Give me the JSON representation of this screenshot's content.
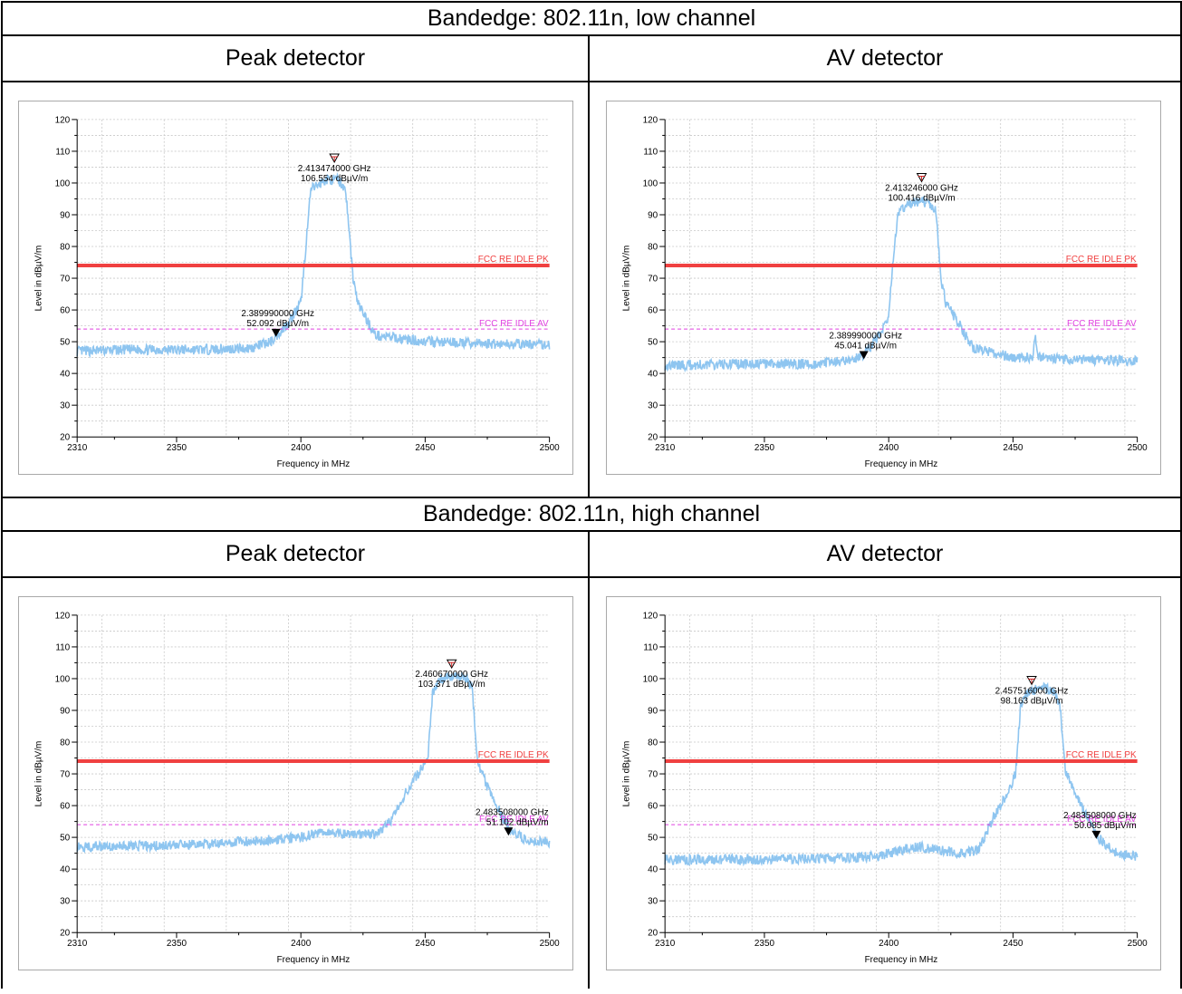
{
  "sections": [
    {
      "title": "Bandedge: 802.11n, low channel",
      "left_header": "Peak detector",
      "right_header": "AV detector"
    },
    {
      "title": "Bandedge: 802.11n, high channel",
      "left_header": "Peak detector",
      "right_header": "AV detector"
    }
  ],
  "colors": {
    "trace": "#8ec5f0",
    "pk_limit": "#f04040",
    "av_limit": "#e040e0",
    "grid": "#c8c8c8"
  },
  "chart_data": [
    {
      "type": "line",
      "xlabel": "Frequency in MHz",
      "ylabel": "Level in dBµV/m",
      "xlim": [
        2310,
        2500
      ],
      "ylim": [
        20,
        120
      ],
      "x_ticks": [
        2310,
        2350,
        2400,
        2450,
        2500
      ],
      "y_ticks": [
        20,
        30,
        40,
        50,
        60,
        70,
        80,
        90,
        100,
        110,
        120
      ],
      "grid": true,
      "limits": [
        {
          "name": "FCC RE IDLE PK",
          "value": 74,
          "style": "solid"
        },
        {
          "name": "FCC RE IDLE AV",
          "value": 54,
          "style": "dashed"
        }
      ],
      "series": [
        {
          "x": [
            2310,
            2330,
            2360,
            2380,
            2388,
            2395,
            2400,
            2402,
            2404,
            2410,
            2415,
            2418,
            2421,
            2423,
            2430,
            2450,
            2470,
            2500
          ],
          "y": [
            47,
            47.5,
            47.5,
            48,
            50,
            56,
            62,
            80,
            98,
            101,
            101,
            98,
            70,
            62,
            52,
            50,
            49.5,
            49
          ]
        }
      ],
      "markers": [
        {
          "type": "peak",
          "freq_label": "2.413474000 GHz",
          "level_label": "106.554 dBµV/m",
          "x": 2413.474,
          "y": 106.554
        },
        {
          "type": "edge",
          "freq_label": "2.389990000 GHz",
          "level_label": "52.092 dBµV/m",
          "x": 2389.99,
          "y": 52.092
        }
      ]
    },
    {
      "type": "line",
      "xlabel": "Frequency in MHz",
      "ylabel": "Level in dBµV/m",
      "xlim": [
        2310,
        2500
      ],
      "ylim": [
        20,
        120
      ],
      "x_ticks": [
        2310,
        2350,
        2400,
        2450,
        2500
      ],
      "y_ticks": [
        20,
        30,
        40,
        50,
        60,
        70,
        80,
        90,
        100,
        110,
        120
      ],
      "grid": true,
      "limits": [
        {
          "name": "FCC RE IDLE PK",
          "value": 74,
          "style": "solid"
        },
        {
          "name": "FCC RE IDLE AV",
          "value": 54,
          "style": "dashed"
        }
      ],
      "series": [
        {
          "x": [
            2310,
            2340,
            2370,
            2385,
            2390,
            2396,
            2400,
            2402,
            2404,
            2410,
            2415,
            2419,
            2421,
            2423,
            2428,
            2434,
            2450,
            2458,
            2459,
            2460,
            2470,
            2500
          ],
          "y": [
            42.5,
            43,
            43,
            44,
            46,
            52,
            58,
            78,
            91,
            94,
            94,
            91,
            70,
            62,
            56,
            48,
            45,
            45,
            52,
            45,
            44.5,
            44
          ]
        }
      ],
      "markers": [
        {
          "type": "peak",
          "freq_label": "2.413246000 GHz",
          "level_label": "100.416 dBµV/m",
          "x": 2413.246,
          "y": 100.416
        },
        {
          "type": "edge",
          "freq_label": "2.389990000 GHz",
          "level_label": "45.041 dBµV/m",
          "x": 2389.99,
          "y": 45.041
        }
      ]
    },
    {
      "type": "line",
      "xlabel": "Frequency in MHz",
      "ylabel": "Level in dBµV/m",
      "xlim": [
        2310,
        2500
      ],
      "ylim": [
        20,
        120
      ],
      "x_ticks": [
        2310,
        2350,
        2400,
        2450,
        2500
      ],
      "y_ticks": [
        20,
        30,
        40,
        50,
        60,
        70,
        80,
        90,
        100,
        110,
        120
      ],
      "grid": true,
      "limits": [
        {
          "name": "FCC RE IDLE PK",
          "value": 74,
          "style": "solid"
        },
        {
          "name": "FCC RE IDLE AV",
          "value": 54,
          "style": "dashed"
        }
      ],
      "series": [
        {
          "x": [
            2310,
            2350,
            2385,
            2400,
            2410,
            2420,
            2430,
            2436,
            2442,
            2448,
            2451,
            2453,
            2456,
            2462,
            2467,
            2469,
            2471,
            2476,
            2484,
            2492,
            2500
          ],
          "y": [
            47,
            47.5,
            49,
            50,
            52,
            51,
            51,
            55,
            64,
            71,
            74,
            96,
            100,
            101,
            100,
            96,
            74,
            64,
            52,
            49,
            48.5
          ]
        }
      ],
      "markers": [
        {
          "type": "peak",
          "freq_label": "2.460670000 GHz",
          "level_label": "103.371 dBµV/m",
          "x": 2460.67,
          "y": 103.371
        },
        {
          "type": "edge",
          "freq_label": "2.483508000 GHz",
          "level_label": "51.102 dBµV/m",
          "x": 2483.508,
          "y": 51.102
        }
      ]
    },
    {
      "type": "line",
      "xlabel": "Frequency in MHz",
      "ylabel": "Level in dBµV/m",
      "xlim": [
        2310,
        2500
      ],
      "ylim": [
        20,
        120
      ],
      "x_ticks": [
        2310,
        2350,
        2400,
        2450,
        2500
      ],
      "y_ticks": [
        20,
        30,
        40,
        50,
        60,
        70,
        80,
        90,
        100,
        110,
        120
      ],
      "grid": true,
      "limits": [
        {
          "name": "FCC RE IDLE PK",
          "value": 74,
          "style": "solid"
        },
        {
          "name": "FCC RE IDLE AV",
          "value": 54,
          "style": "dashed"
        }
      ],
      "series": [
        {
          "x": [
            2310,
            2350,
            2380,
            2395,
            2405,
            2412,
            2420,
            2430,
            2436,
            2442,
            2448,
            2451,
            2453,
            2456,
            2462,
            2467,
            2469,
            2471,
            2476,
            2484,
            2492,
            2500
          ],
          "y": [
            43,
            43,
            43.5,
            44,
            46,
            47,
            46,
            45,
            46,
            56,
            64,
            70,
            91,
            96,
            97,
            96,
            91,
            71,
            62,
            50,
            45,
            44
          ]
        }
      ],
      "markers": [
        {
          "type": "peak",
          "freq_label": "2.457516000 GHz",
          "level_label": "98.163 dBµV/m",
          "x": 2457.516,
          "y": 98.163
        },
        {
          "type": "edge",
          "freq_label": "2.483508000 GHz",
          "level_label": "50.085 dBµV/m",
          "x": 2483.508,
          "y": 50.085
        }
      ]
    }
  ]
}
